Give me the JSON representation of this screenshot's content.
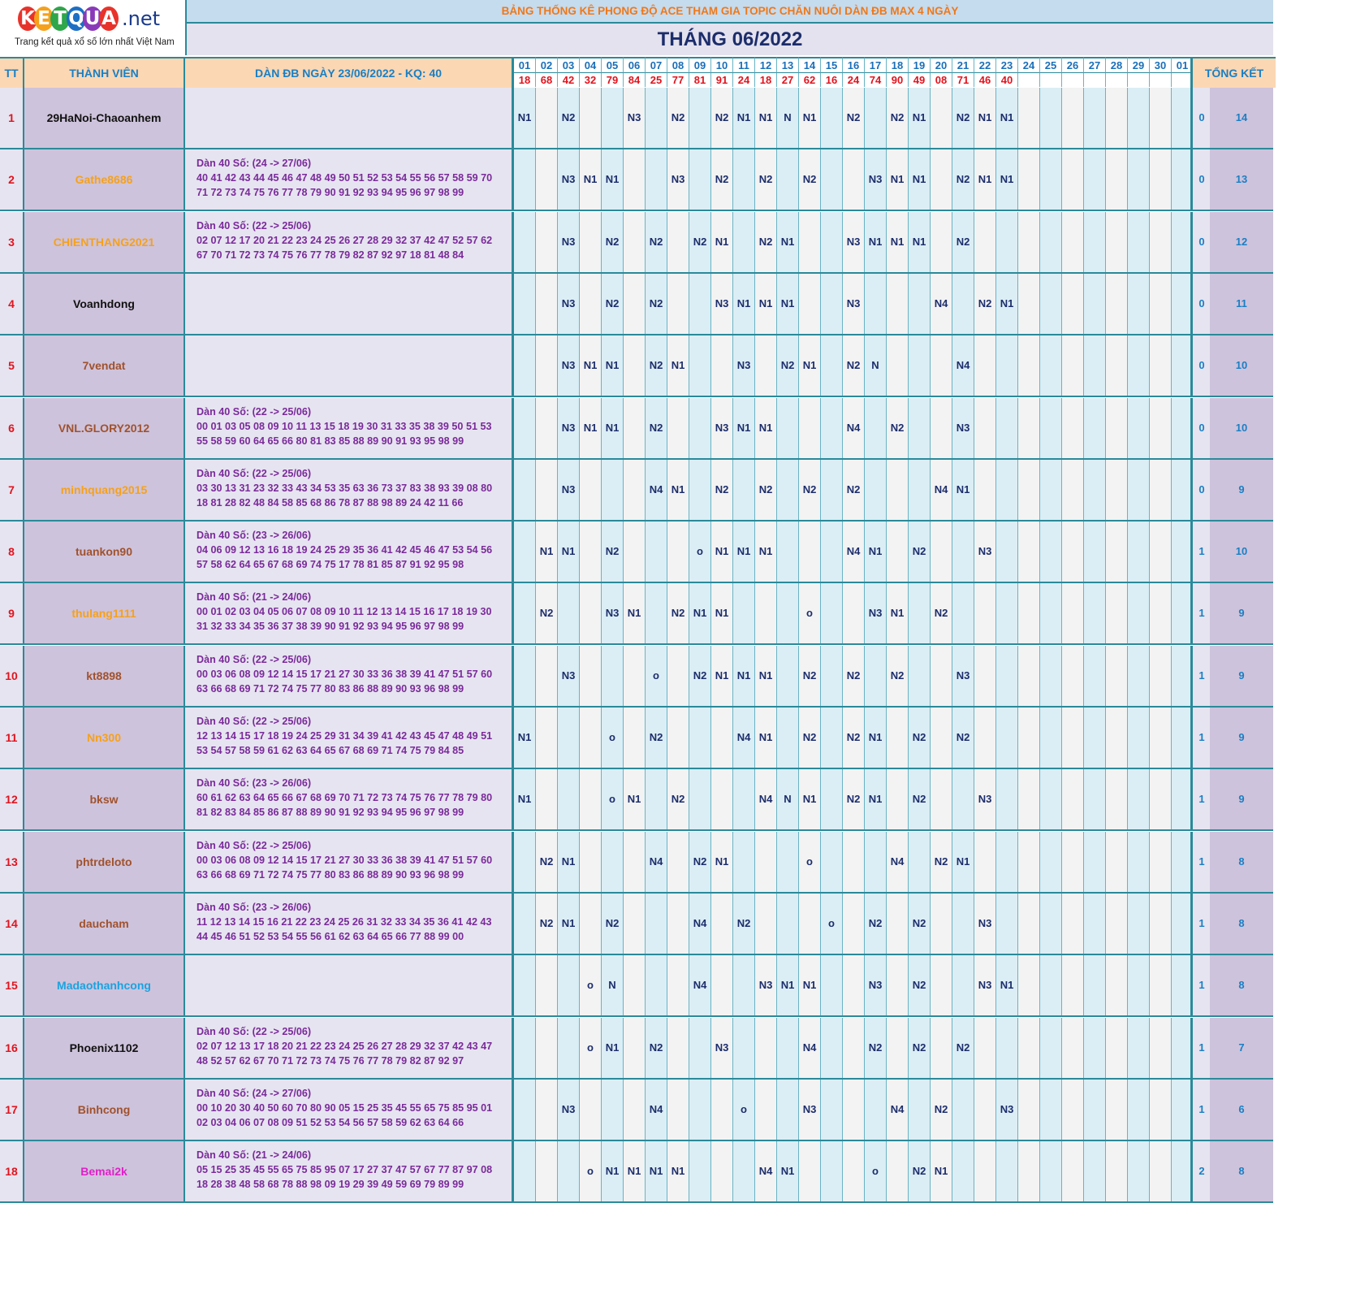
{
  "logo": {
    "letters": [
      {
        "ch": "K",
        "color": "#e8332a"
      },
      {
        "ch": "E",
        "color": "#f5a11c"
      },
      {
        "ch": "T",
        "color": "#2ea64a"
      },
      {
        "ch": "Q",
        "color": "#1c6fc4"
      },
      {
        "ch": "U",
        "color": "#8a3ab9"
      },
      {
        "ch": "A",
        "color": "#e8332a"
      }
    ],
    "suffix": ".net",
    "tagline": "Trang kết quả xổ số lớn nhất Việt Nam"
  },
  "banner": "BẢNG THỐNG KÊ PHONG ĐỘ ACE THAM GIA TOPIC CHĂN NUÔI DÀN ĐB MAX 4 NGÀY",
  "month_title": "THÁNG 06/2022",
  "headers": {
    "tt": "TT",
    "member": "THÀNH VIÊN",
    "dan": "DÀN ĐB NGÀY 23/06/2022 - KQ: 40",
    "summary": "TỔNG KẾT"
  },
  "days": [
    "01",
    "02",
    "03",
    "04",
    "05",
    "06",
    "07",
    "08",
    "09",
    "10",
    "11",
    "12",
    "13",
    "14",
    "15",
    "16",
    "17",
    "18",
    "19",
    "20",
    "21",
    "22",
    "23",
    "24",
    "25",
    "26",
    "27",
    "28",
    "29",
    "30",
    "01"
  ],
  "results": [
    "18",
    "68",
    "42",
    "32",
    "79",
    "84",
    "25",
    "77",
    "81",
    "91",
    "24",
    "18",
    "27",
    "62",
    "16",
    "24",
    "74",
    "90",
    "49",
    "08",
    "71",
    "46",
    "40",
    "",
    "",
    "",
    "",
    "",
    "",
    "",
    ""
  ],
  "rows": [
    {
      "tt": "1",
      "name": "29HaNoi-Chaoanhem",
      "color": "#111111",
      "dan_title": "",
      "dan_l1": "",
      "dan_l2": "",
      "marks": [
        "N1",
        "",
        "N2",
        "",
        "",
        "N3",
        "",
        "N2",
        "",
        "N2",
        "N1",
        "N1",
        "N",
        "N1",
        "",
        "N2",
        "",
        "N2",
        "N1",
        "",
        "N2",
        "N1",
        "N1",
        "",
        "",
        "",
        "",
        "",
        "",
        "",
        ""
      ],
      "s1": "0",
      "s2": "14"
    },
    {
      "tt": "2",
      "name": "Gathe8686",
      "color": "#f5a11c",
      "dan_title": "Dàn 40 Số: (24 -> 27/06)",
      "dan_l1": "40 41 42 43 44 45 46 47 48 49 50 51 52 53 54 55 56 57 58 59 70",
      "dan_l2": "71 72 73 74 75 76 77 78 79 90 91 92 93 94 95 96 97 98 99",
      "marks": [
        "",
        "",
        "N3",
        "N1",
        "N1",
        "",
        "",
        "N3",
        "",
        "N2",
        "",
        "N2",
        "",
        "N2",
        "",
        "",
        "N3",
        "N1",
        "N1",
        "",
        "N2",
        "N1",
        "N1",
        "",
        "",
        "",
        "",
        "",
        "",
        "",
        ""
      ],
      "s1": "0",
      "s2": "13"
    },
    {
      "tt": "3",
      "name": "CHIENTHANG2021",
      "color": "#f5a11c",
      "dan_title": "Dàn 40 Số: (22 -> 25/06)",
      "dan_l1": "02 07 12 17 20 21 22 23 24 25 26 27 28 29 32 37 42 47 52 57 62",
      "dan_l2": "67 70 71 72 73 74 75 76 77 78 79 82 87 92 97 18 81 48 84",
      "marks": [
        "",
        "",
        "N3",
        "",
        "N2",
        "",
        "N2",
        "",
        "N2",
        "N1",
        "",
        "N2",
        "N1",
        "",
        "",
        "N3",
        "N1",
        "N1",
        "N1",
        "",
        "N2",
        "",
        "",
        "",
        "",
        "",
        "",
        "",
        "",
        "",
        ""
      ],
      "s1": "0",
      "s2": "12"
    },
    {
      "tt": "4",
      "name": "Voanhdong",
      "color": "#111111",
      "dan_title": "",
      "dan_l1": "",
      "dan_l2": "",
      "marks": [
        "",
        "",
        "N3",
        "",
        "N2",
        "",
        "N2",
        "",
        "",
        "N3",
        "N1",
        "N1",
        "N1",
        "",
        "",
        "N3",
        "",
        "",
        "",
        "N4",
        "",
        "N2",
        "N1",
        "",
        "",
        "",
        "",
        "",
        "",
        "",
        ""
      ],
      "s1": "0",
      "s2": "11"
    },
    {
      "tt": "5",
      "name": "7vendat",
      "color": "#a0522d",
      "dan_title": "",
      "dan_l1": "",
      "dan_l2": "",
      "marks": [
        "",
        "",
        "N3",
        "N1",
        "N1",
        "",
        "N2",
        "N1",
        "",
        "",
        "N3",
        "",
        "N2",
        "N1",
        "",
        "N2",
        "N",
        "",
        "",
        "",
        "N4",
        "",
        "",
        "",
        "",
        "",
        "",
        "",
        "",
        "",
        ""
      ],
      "s1": "0",
      "s2": "10"
    },
    {
      "tt": "6",
      "name": "VNL.GLORY2012",
      "color": "#a0522d",
      "dan_title": "Dàn 40 Số: (22 -> 25/06)",
      "dan_l1": "00 01 03 05 08 09 10 11 13 15 18 19 30 31 33 35 38 39 50 51 53",
      "dan_l2": "55 58 59 60 64 65 66 80 81 83 85 88 89 90 91 93 95 98 99",
      "marks": [
        "",
        "",
        "N3",
        "N1",
        "N1",
        "",
        "N2",
        "",
        "",
        "N3",
        "N1",
        "N1",
        "",
        "",
        "",
        "N4",
        "",
        "N2",
        "",
        "",
        "N3",
        "",
        "",
        "",
        "",
        "",
        "",
        "",
        "",
        "",
        ""
      ],
      "s1": "0",
      "s2": "10"
    },
    {
      "tt": "7",
      "name": "minhquang2015",
      "color": "#f5a11c",
      "dan_title": "Dàn 40 Số: (22 -> 25/06)",
      "dan_l1": "03 30 13 31 23 32 33 43 34 53 35 63 36 73 37 83 38 93 39 08 80",
      "dan_l2": "18 81 28 82 48 84 58 85 68 86 78 87 88 98 89 24 42 11 66",
      "marks": [
        "",
        "",
        "N3",
        "",
        "",
        "",
        "N4",
        "N1",
        "",
        "N2",
        "",
        "N2",
        "",
        "N2",
        "",
        "N2",
        "",
        "",
        "",
        "N4",
        "N1",
        "",
        "",
        "",
        "",
        "",
        "",
        "",
        "",
        "",
        ""
      ],
      "s1": "0",
      "s2": "9"
    },
    {
      "tt": "8",
      "name": "tuankon90",
      "color": "#a0522d",
      "dan_title": "Dàn 40 Số: (23 -> 26/06)",
      "dan_l1": "04 06 09 12 13 16 18 19 24 25 29 35 36 41 42 45 46 47 53 54 56",
      "dan_l2": "57 58 62 64 65 67 68 69 74 75 17 78 81 85 87 91 92 95 98",
      "marks": [
        "",
        "N1",
        "N1",
        "",
        "N2",
        "",
        "",
        "",
        "o",
        "N1",
        "N1",
        "N1",
        "",
        "",
        "",
        "N4",
        "N1",
        "",
        "N2",
        "",
        "",
        "N3",
        "",
        "",
        "",
        "",
        "",
        "",
        "",
        "",
        ""
      ],
      "s1": "1",
      "s2": "10"
    },
    {
      "tt": "9",
      "name": "thulang1111",
      "color": "#f5a11c",
      "dan_title": "Dàn 40 Số: (21 -> 24/06)",
      "dan_l1": "00 01 02 03 04 05 06 07 08 09 10 11 12 13 14 15 16 17 18 19 30",
      "dan_l2": "31 32 33 34 35 36 37 38 39 90 91 92 93 94 95 96 97 98 99",
      "marks": [
        "",
        "N2",
        "",
        "",
        "N3",
        "N1",
        "",
        "N2",
        "N1",
        "N1",
        "",
        "",
        "",
        "o",
        "",
        "",
        "N3",
        "N1",
        "",
        "N2",
        "",
        "",
        "",
        "",
        "",
        "",
        "",
        "",
        "",
        "",
        ""
      ],
      "s1": "1",
      "s2": "9"
    },
    {
      "tt": "10",
      "name": "kt8898",
      "color": "#a0522d",
      "dan_title": "Dàn 40 Số: (22 -> 25/06)",
      "dan_l1": "00 03 06 08 09 12 14 15 17 21 27 30 33 36 38 39 41 47 51 57 60",
      "dan_l2": "63 66 68 69 71 72 74 75 77 80 83 86 88 89 90 93 96 98 99",
      "marks": [
        "",
        "",
        "N3",
        "",
        "",
        "",
        "o",
        "",
        "N2",
        "N1",
        "N1",
        "N1",
        "",
        "N2",
        "",
        "N2",
        "",
        "N2",
        "",
        "",
        "N3",
        "",
        "",
        "",
        "",
        "",
        "",
        "",
        "",
        "",
        ""
      ],
      "s1": "1",
      "s2": "9"
    },
    {
      "tt": "11",
      "name": "Nn300",
      "color": "#f5a11c",
      "dan_title": "Dàn 40 Số: (22 -> 25/06)",
      "dan_l1": "12 13 14 15 17 18 19 24 25 29 31 34 39 41 42 43 45 47 48 49 51",
      "dan_l2": "53 54 57 58 59 61 62 63 64 65 67 68 69 71 74 75 79 84 85",
      "marks": [
        "N1",
        "",
        "",
        "",
        "o",
        "",
        "N2",
        "",
        "",
        "",
        "N4",
        "N1",
        "",
        "N2",
        "",
        "N2",
        "N1",
        "",
        "N2",
        "",
        "N2",
        "",
        "",
        "",
        "",
        "",
        "",
        "",
        "",
        "",
        ""
      ],
      "s1": "1",
      "s2": "9"
    },
    {
      "tt": "12",
      "name": "bksw",
      "color": "#a0522d",
      "dan_title": "Dàn 40 Số: (23 -> 26/06)",
      "dan_l1": "60 61 62 63 64 65 66 67 68 69 70 71 72 73 74 75 76 77 78 79 80",
      "dan_l2": "81 82 83 84 85 86 87 88 89 90 91 92 93 94 95 96 97 98 99",
      "marks": [
        "N1",
        "",
        "",
        "",
        "o",
        "N1",
        "",
        "N2",
        "",
        "",
        "",
        "N4",
        "N",
        "N1",
        "",
        "N2",
        "N1",
        "",
        "N2",
        "",
        "",
        "N3",
        "",
        "",
        "",
        "",
        "",
        "",
        "",
        "",
        ""
      ],
      "s1": "1",
      "s2": "9"
    },
    {
      "tt": "13",
      "name": "phtrdeloto",
      "color": "#a0522d",
      "dan_title": "Dàn 40 Số: (22 -> 25/06)",
      "dan_l1": "00 03 06 08 09 12 14 15 17 21 27 30 33 36 38 39 41 47 51 57 60",
      "dan_l2": "63 66 68 69 71 72 74 75 77 80 83 86 88 89 90 93 96 98 99",
      "marks": [
        "",
        "N2",
        "N1",
        "",
        "",
        "",
        "N4",
        "",
        "N2",
        "N1",
        "",
        "",
        "",
        "o",
        "",
        "",
        "",
        "N4",
        "",
        "N2",
        "N1",
        "",
        "",
        "",
        "",
        "",
        "",
        "",
        "",
        "",
        ""
      ],
      "s1": "1",
      "s2": "8"
    },
    {
      "tt": "14",
      "name": "daucham",
      "color": "#a0522d",
      "dan_title": "Dàn 40 Số: (23 -> 26/06)",
      "dan_l1": "11 12 13 14 15 16 21 22 23 24 25 26 31 32 33 34 35 36 41 42 43",
      "dan_l2": "44 45 46 51 52 53 54 55 56 61 62 63 64 65 66 77 88 99 00",
      "marks": [
        "",
        "N2",
        "N1",
        "",
        "N2",
        "",
        "",
        "",
        "N4",
        "",
        "N2",
        "",
        "",
        "",
        "o",
        "",
        "N2",
        "",
        "N2",
        "",
        "",
        "N3",
        "",
        "",
        "",
        "",
        "",
        "",
        "",
        "",
        ""
      ],
      "s1": "1",
      "s2": "8"
    },
    {
      "tt": "15",
      "name": "Madaothanhcong",
      "color": "#1aa3e0",
      "dan_title": "",
      "dan_l1": "",
      "dan_l2": "",
      "marks": [
        "",
        "",
        "",
        "o",
        "N",
        "",
        "",
        "",
        "N4",
        "",
        "",
        "N3",
        "N1",
        "N1",
        "",
        "",
        "N3",
        "",
        "N2",
        "",
        "",
        "N3",
        "N1",
        "",
        "",
        "",
        "",
        "",
        "",
        "",
        ""
      ],
      "s1": "1",
      "s2": "8"
    },
    {
      "tt": "16",
      "name": "Phoenix1102",
      "color": "#111111",
      "dan_title": "Dàn 40 Số: (22 -> 25/06)",
      "dan_l1": "02 07 12 13 17 18 20 21 22 23 24 25 26 27 28 29 32 37 42 43 47",
      "dan_l2": "48 52 57 62 67 70 71 72 73 74 75 76 77 78 79 82 87 92 97",
      "marks": [
        "",
        "",
        "",
        "o",
        "N1",
        "",
        "N2",
        "",
        "",
        "N3",
        "",
        "",
        "",
        "N4",
        "",
        "",
        "N2",
        "",
        "N2",
        "",
        "N2",
        "",
        "",
        "",
        "",
        "",
        "",
        "",
        "",
        "",
        ""
      ],
      "s1": "1",
      "s2": "7"
    },
    {
      "tt": "17",
      "name": "Binhcong",
      "color": "#a0522d",
      "dan_title": "Dàn 40 Số: (24 -> 27/06)",
      "dan_l1": "00 10 20 30 40 50 60 70 80 90 05 15 25 35 45 55 65 75 85 95 01",
      "dan_l2": "02 03 04 06 07 08 09 51 52 53 54 56 57 58 59 62 63 64 66",
      "marks": [
        "",
        "",
        "N3",
        "",
        "",
        "",
        "N4",
        "",
        "",
        "",
        "o",
        "",
        "",
        "N3",
        "",
        "",
        "",
        "N4",
        "",
        "N2",
        "",
        "",
        "N3",
        "",
        "",
        "",
        "",
        "",
        "",
        "",
        ""
      ],
      "s1": "1",
      "s2": "6"
    },
    {
      "tt": "18",
      "name": "Bemai2k",
      "color": "#e020c8",
      "dan_title": "Dàn 40 Số: (21 -> 24/06)",
      "dan_l1": "05 15 25 35 45 55 65 75 85 95 07 17 27 37 47 57 67 77 87 97 08",
      "dan_l2": "18 28 38 48 58 68 78 88 98 09 19 29 39 49 59 69 79 89 99",
      "marks": [
        "",
        "",
        "",
        "o",
        "N1",
        "N1",
        "N1",
        "N1",
        "",
        "",
        "",
        "N4",
        "N1",
        "",
        "",
        "",
        "o",
        "",
        "N2",
        "N1",
        "",
        "",
        "",
        "",
        "",
        "",
        "",
        "",
        "",
        "",
        ""
      ],
      "s1": "2",
      "s2": "8"
    }
  ]
}
